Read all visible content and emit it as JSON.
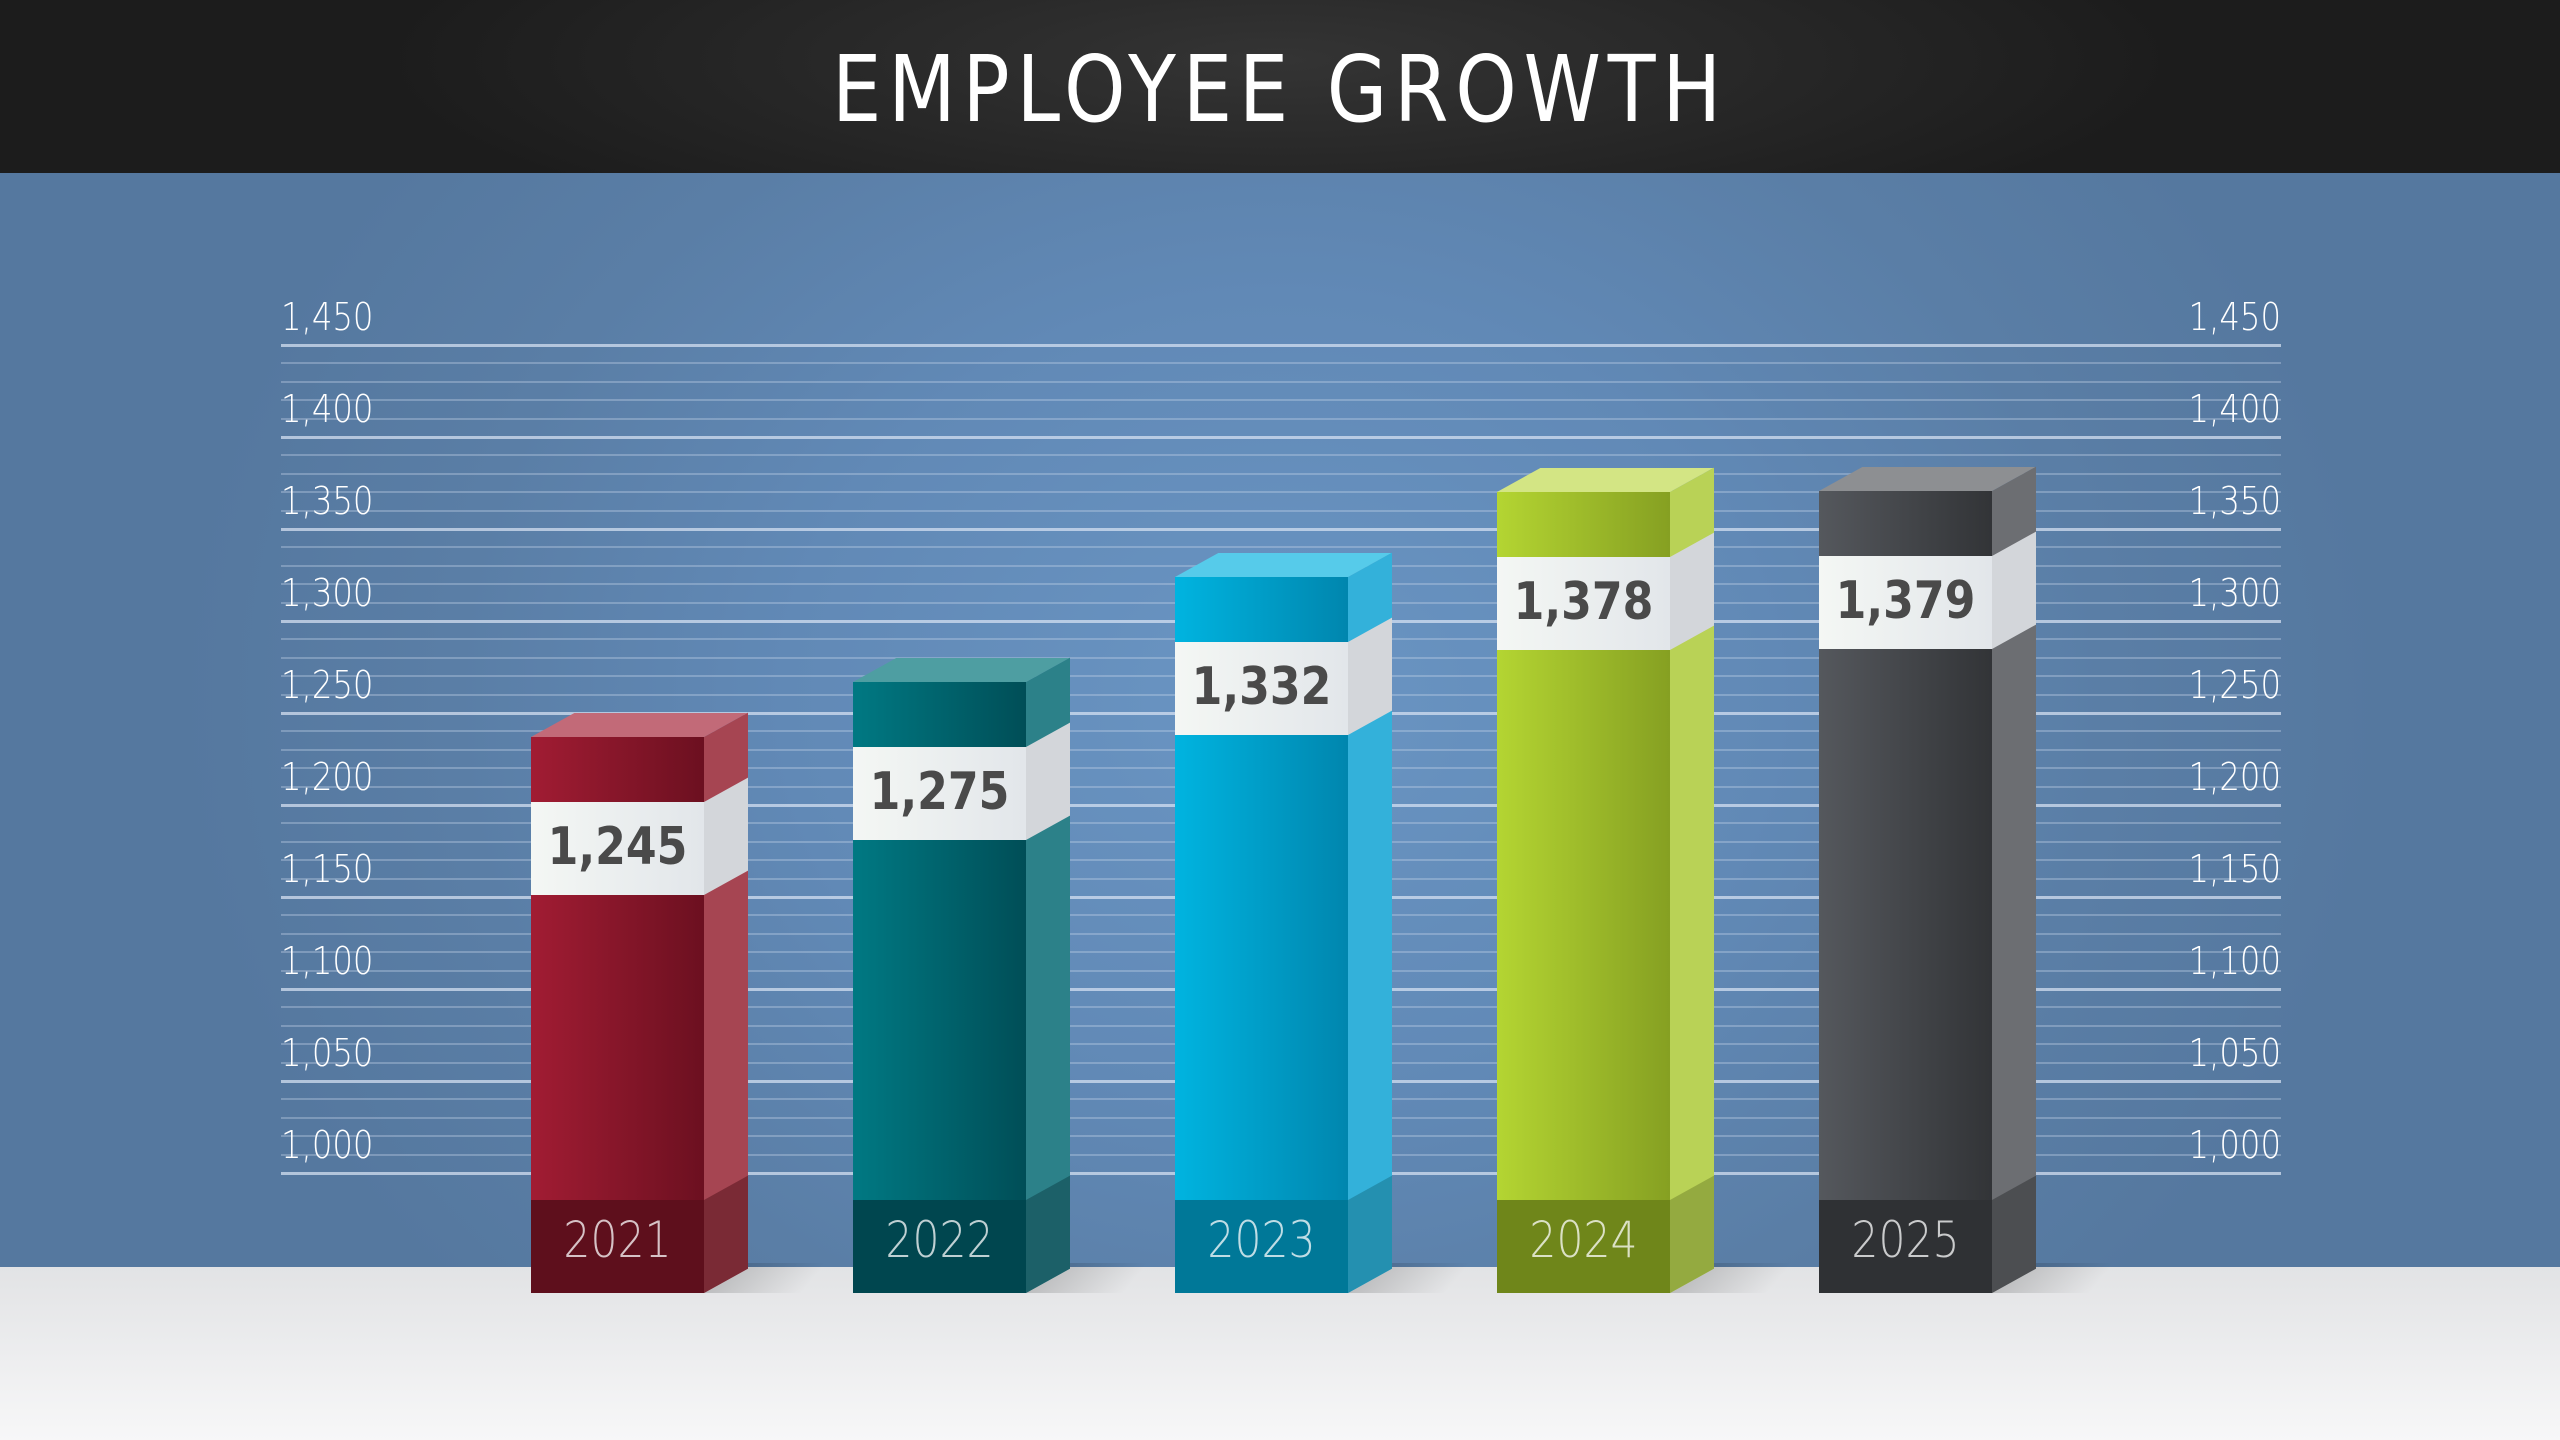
{
  "header": {
    "title": "EMPLOYEE GROWTH"
  },
  "chart_data": {
    "type": "bar",
    "title": "EMPLOYEE GROWTH",
    "categories": [
      "2021",
      "2022",
      "2023",
      "2024",
      "2025"
    ],
    "values": [
      1245,
      1275,
      1332,
      1378,
      1379
    ],
    "value_labels": [
      "1,245",
      "1,275",
      "1,332",
      "1,378",
      "1,379"
    ],
    "ylim": [
      1000,
      1450
    ],
    "yticks": [
      "1,000",
      "1,050",
      "1,100",
      "1,150",
      "1,200",
      "1,250",
      "1,300",
      "1,350",
      "1,400",
      "1,450"
    ],
    "grid": true,
    "style": "3d",
    "colors": [
      "#9b1b30",
      "#007580",
      "#00b0dc",
      "#b0d030",
      "#505358"
    ]
  }
}
